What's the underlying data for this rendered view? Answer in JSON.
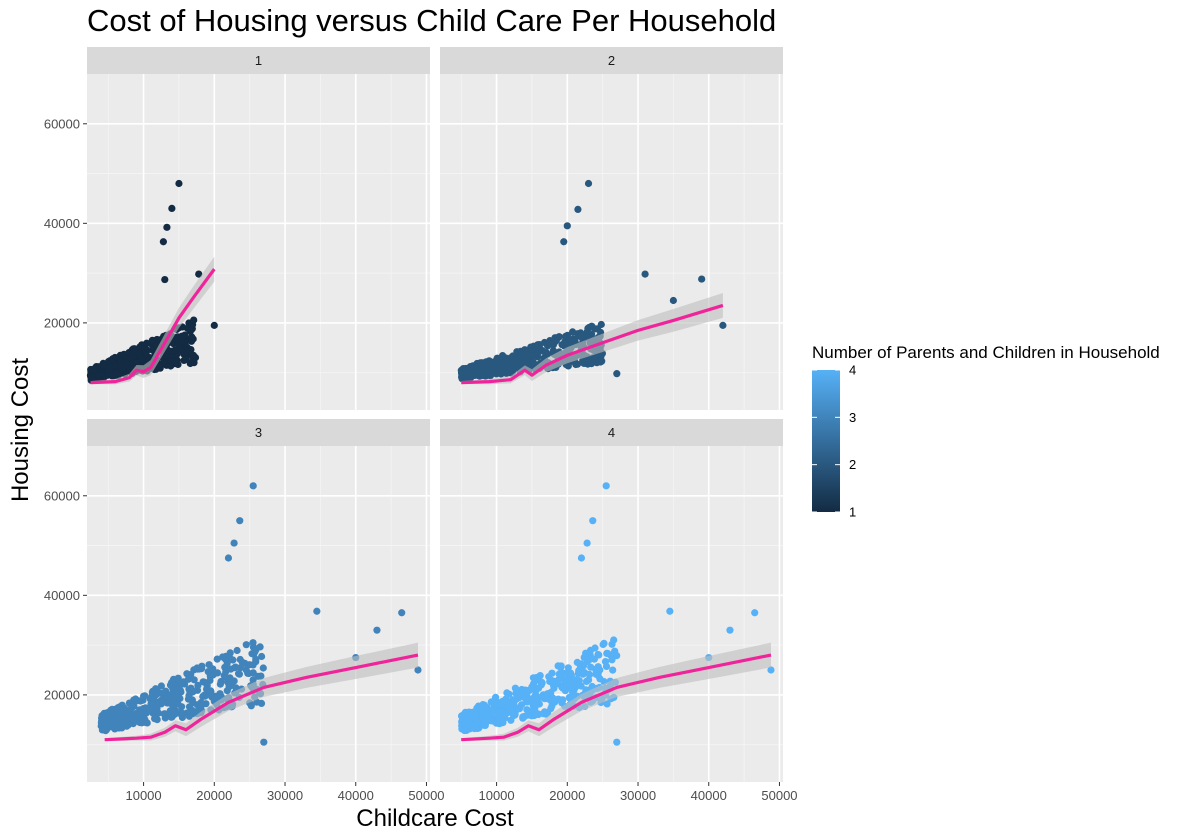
{
  "chart_data": {
    "type": "scatter",
    "title": "Cost of Housing versus Child Care Per Household",
    "xlabel": "Childcare Cost",
    "ylabel": "Housing Cost",
    "xlim": [
      2000,
      50500
    ],
    "ylim": [
      2500,
      70000
    ],
    "x_ticks": [
      10000,
      20000,
      30000,
      40000,
      50000
    ],
    "y_ticks": [
      20000,
      40000,
      60000
    ],
    "grid": true,
    "facets": [
      "1",
      "2",
      "3",
      "4"
    ],
    "legend": {
      "title": "Number of Parents and Children in Household",
      "position": "right",
      "min": 1,
      "max": 4,
      "ticks": [
        1,
        2,
        3,
        4
      ],
      "low_color": "#132B43",
      "high_color": "#56B1F7"
    },
    "series": [
      {
        "facet": "1",
        "color_value": 1,
        "outliers": [
          [
            15000,
            48000
          ],
          [
            14000,
            43000
          ],
          [
            13300,
            39200
          ],
          [
            12800,
            36300
          ],
          [
            17800,
            29800
          ],
          [
            20000,
            19500
          ],
          [
            13000,
            28700
          ]
        ],
        "cluster": {
          "x_range": [
            2500,
            17500
          ],
          "y_range": [
            6000,
            25000
          ]
        },
        "smooth": [
          [
            2500,
            8000
          ],
          [
            6000,
            8200
          ],
          [
            8000,
            9000
          ],
          [
            9000,
            10500
          ],
          [
            10000,
            10200
          ],
          [
            11000,
            11000
          ],
          [
            13000,
            16000
          ],
          [
            15000,
            21000
          ],
          [
            17000,
            25000
          ],
          [
            20000,
            30800
          ]
        ]
      },
      {
        "facet": "2",
        "color_value": 2,
        "outliers": [
          [
            23000,
            48000
          ],
          [
            21500,
            42800
          ],
          [
            20000,
            39500
          ],
          [
            19500,
            36300
          ],
          [
            31000,
            29800
          ],
          [
            39000,
            28800
          ],
          [
            42000,
            19500
          ],
          [
            35000,
            24500
          ],
          [
            27000,
            9800
          ]
        ],
        "cluster": {
          "x_range": [
            5000,
            25000
          ],
          "y_range": [
            6500,
            24000
          ]
        },
        "smooth": [
          [
            5000,
            8000
          ],
          [
            9000,
            8200
          ],
          [
            12000,
            8600
          ],
          [
            14000,
            10500
          ],
          [
            15000,
            9500
          ],
          [
            17000,
            11500
          ],
          [
            20000,
            13500
          ],
          [
            25000,
            16000
          ],
          [
            30000,
            18500
          ],
          [
            35000,
            20500
          ],
          [
            42000,
            23500
          ]
        ]
      },
      {
        "facet": "3",
        "color_value": 3,
        "outliers": [
          [
            25500,
            62000
          ],
          [
            23600,
            55000
          ],
          [
            22800,
            50500
          ],
          [
            22000,
            47500
          ],
          [
            34500,
            36800
          ],
          [
            46500,
            36500
          ],
          [
            48800,
            25000
          ],
          [
            43000,
            33000
          ],
          [
            40000,
            27500
          ],
          [
            27000,
            10500
          ]
        ],
        "cluster": {
          "x_range": [
            4000,
            27000
          ],
          "y_range": [
            9000,
            38000
          ]
        },
        "smooth": [
          [
            4500,
            11000
          ],
          [
            9000,
            11300
          ],
          [
            11000,
            11500
          ],
          [
            13000,
            12500
          ],
          [
            14500,
            13800
          ],
          [
            16000,
            13000
          ],
          [
            18000,
            15000
          ],
          [
            22000,
            18500
          ],
          [
            27000,
            21500
          ],
          [
            33000,
            23500
          ],
          [
            40000,
            25500
          ],
          [
            48800,
            28000
          ]
        ]
      },
      {
        "facet": "4",
        "color_value": 4,
        "outliers": [
          [
            25500,
            62000
          ],
          [
            23600,
            55000
          ],
          [
            22800,
            50500
          ],
          [
            22000,
            47500
          ],
          [
            34500,
            36800
          ],
          [
            46500,
            36500
          ],
          [
            48800,
            25000
          ],
          [
            43000,
            33000
          ],
          [
            40000,
            27500
          ],
          [
            27000,
            10500
          ]
        ],
        "cluster": {
          "x_range": [
            5000,
            27000
          ],
          "y_range": [
            9000,
            38000
          ]
        },
        "smooth": [
          [
            5000,
            11000
          ],
          [
            9000,
            11300
          ],
          [
            11000,
            11500
          ],
          [
            13000,
            12500
          ],
          [
            14500,
            13800
          ],
          [
            16000,
            13000
          ],
          [
            18000,
            15000
          ],
          [
            22000,
            18500
          ],
          [
            27000,
            21500
          ],
          [
            33000,
            23500
          ],
          [
            40000,
            25500
          ],
          [
            48800,
            28000
          ]
        ]
      }
    ],
    "smooth_color": "#F0249A",
    "band_color": "#BEBEBE"
  }
}
